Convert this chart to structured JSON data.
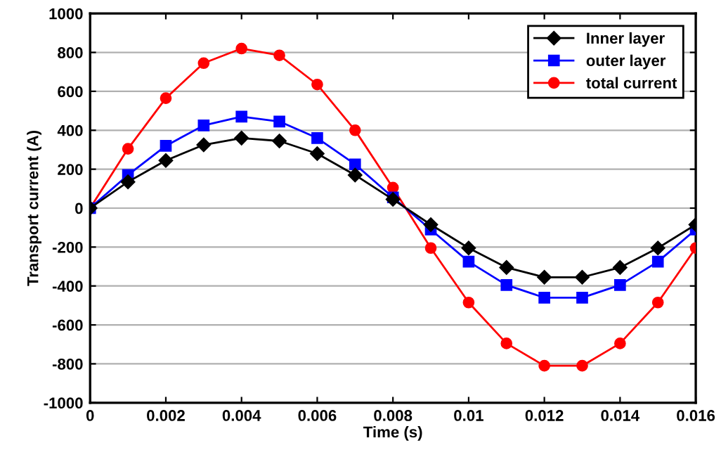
{
  "chart_data": {
    "type": "line",
    "xlabel": "Time (s)",
    "ylabel": "Transport current (A)",
    "x": [
      0,
      0.001,
      0.002,
      0.003,
      0.004,
      0.005,
      0.006,
      0.007,
      0.008,
      0.009,
      0.01,
      0.011,
      0.012,
      0.013,
      0.014,
      0.015,
      0.016
    ],
    "series": [
      {
        "name": "Inner layer",
        "color": "#000000",
        "marker": "diamond",
        "values": [
          0,
          135,
          245,
          325,
          360,
          345,
          280,
          170,
          45,
          -85,
          -205,
          -305,
          -355,
          -355,
          -305,
          -205,
          -85
        ]
      },
      {
        "name": "outer layer",
        "color": "#0000ff",
        "marker": "square",
        "values": [
          0,
          170,
          320,
          425,
          470,
          445,
          360,
          225,
          55,
          -110,
          -275,
          -395,
          -460,
          -460,
          -395,
          -275,
          -110
        ]
      },
      {
        "name": "total current",
        "color": "#ff0000",
        "marker": "circle",
        "values": [
          0,
          305,
          565,
          745,
          820,
          785,
          635,
          400,
          105,
          -205,
          -485,
          -695,
          -810,
          -810,
          -695,
          -485,
          -205
        ]
      }
    ],
    "xlim": [
      0,
      0.016
    ],
    "xticks": [
      0,
      0.002,
      0.004,
      0.006,
      0.008,
      0.01,
      0.012,
      0.014,
      0.016
    ],
    "ylim": [
      -1000,
      1000
    ],
    "yticks": [
      -1000,
      -800,
      -600,
      -400,
      -200,
      0,
      200,
      400,
      600,
      800,
      1000
    ],
    "grid": "y",
    "legend": "top right",
    "line_style": "solid"
  }
}
